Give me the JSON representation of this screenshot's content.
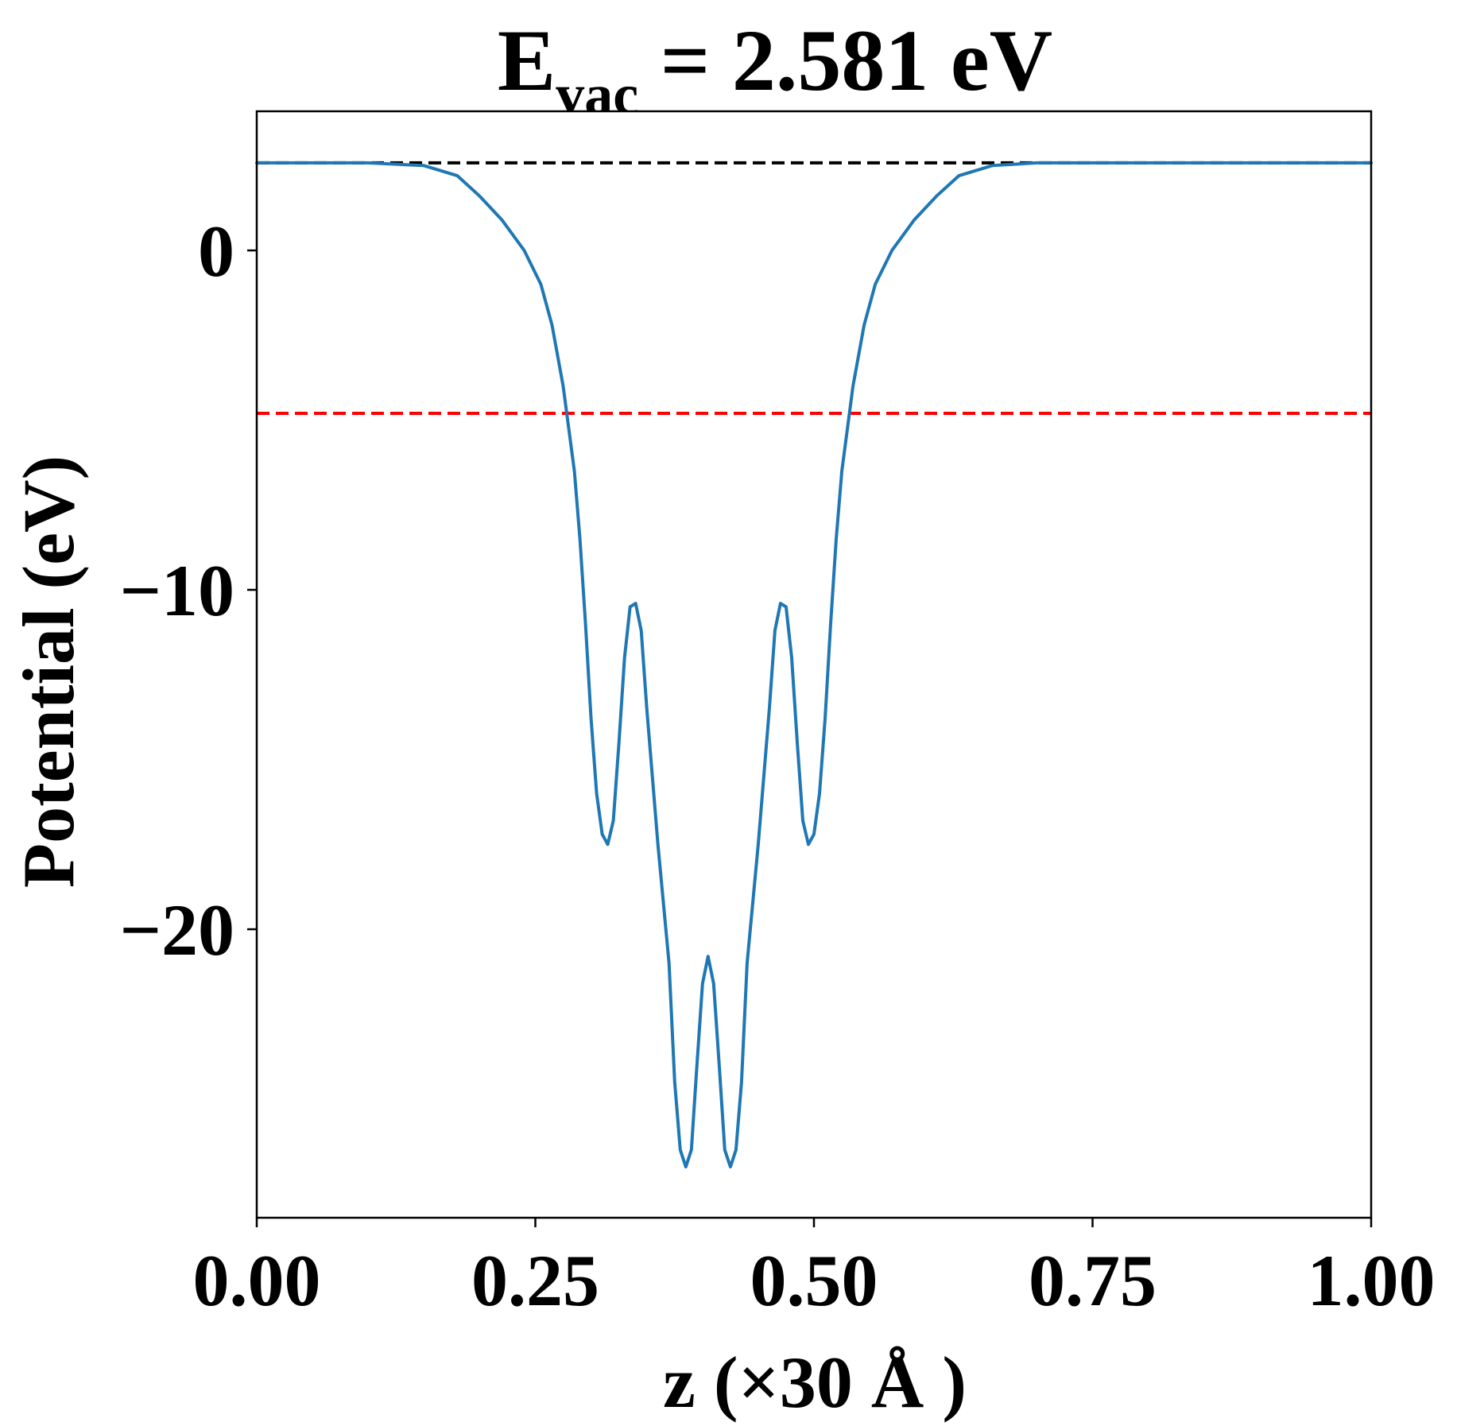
{
  "chart_data": {
    "type": "line",
    "title": {
      "main": "E",
      "subscript": "vac",
      "rest": " = 2.581 eV"
    },
    "xlabel": "z (×30 Å )",
    "ylabel": "Potential (eV)",
    "xlim": [
      0,
      1
    ],
    "ylim": [
      -28.5,
      4.1
    ],
    "x_ticks": [
      0,
      0.25,
      0.5,
      0.75,
      1.0
    ],
    "x_tick_labels": [
      "0.00",
      "0.25",
      "0.50",
      "0.75",
      "1.00"
    ],
    "y_ticks": [
      0,
      -10,
      -20
    ],
    "y_tick_labels": [
      "0",
      "−10",
      "−20"
    ],
    "grid": false,
    "series": [
      {
        "color": "#1f77b4",
        "points": [
          [
            0.0,
            2.58
          ],
          [
            0.05,
            2.58
          ],
          [
            0.1,
            2.58
          ],
          [
            0.15,
            2.5
          ],
          [
            0.18,
            2.2
          ],
          [
            0.2,
            1.6
          ],
          [
            0.22,
            0.9
          ],
          [
            0.24,
            0.0
          ],
          [
            0.255,
            -1.0
          ],
          [
            0.265,
            -2.2
          ],
          [
            0.275,
            -4.0
          ],
          [
            0.285,
            -6.5
          ],
          [
            0.29,
            -8.5
          ],
          [
            0.295,
            -11.0
          ],
          [
            0.3,
            -13.8
          ],
          [
            0.305,
            -16.0
          ],
          [
            0.31,
            -17.2
          ],
          [
            0.315,
            -17.5
          ],
          [
            0.32,
            -16.8
          ],
          [
            0.325,
            -14.5
          ],
          [
            0.33,
            -12.0
          ],
          [
            0.335,
            -10.5
          ],
          [
            0.34,
            -10.4
          ],
          [
            0.345,
            -11.2
          ],
          [
            0.35,
            -13.5
          ],
          [
            0.36,
            -17.5
          ],
          [
            0.37,
            -21.0
          ],
          [
            0.375,
            -24.5
          ],
          [
            0.38,
            -26.5
          ],
          [
            0.385,
            -27.0
          ],
          [
            0.39,
            -26.5
          ],
          [
            0.395,
            -24.0
          ],
          [
            0.4,
            -21.6
          ],
          [
            0.405,
            -20.8
          ],
          [
            0.41,
            -21.6
          ],
          [
            0.415,
            -24.0
          ],
          [
            0.42,
            -26.5
          ],
          [
            0.425,
            -27.0
          ],
          [
            0.43,
            -26.5
          ],
          [
            0.435,
            -24.5
          ],
          [
            0.44,
            -21.0
          ],
          [
            0.45,
            -17.5
          ],
          [
            0.46,
            -13.5
          ],
          [
            0.465,
            -11.2
          ],
          [
            0.47,
            -10.4
          ],
          [
            0.475,
            -10.5
          ],
          [
            0.48,
            -12.0
          ],
          [
            0.485,
            -14.5
          ],
          [
            0.49,
            -16.8
          ],
          [
            0.495,
            -17.5
          ],
          [
            0.5,
            -17.2
          ],
          [
            0.505,
            -16.0
          ],
          [
            0.51,
            -13.8
          ],
          [
            0.515,
            -11.0
          ],
          [
            0.52,
            -8.5
          ],
          [
            0.525,
            -6.5
          ],
          [
            0.535,
            -4.0
          ],
          [
            0.545,
            -2.2
          ],
          [
            0.555,
            -1.0
          ],
          [
            0.57,
            0.0
          ],
          [
            0.59,
            0.9
          ],
          [
            0.61,
            1.6
          ],
          [
            0.63,
            2.2
          ],
          [
            0.66,
            2.5
          ],
          [
            0.7,
            2.58
          ],
          [
            0.8,
            2.58
          ],
          [
            0.9,
            2.58
          ],
          [
            1.0,
            2.58
          ]
        ]
      }
    ],
    "reference_lines": [
      {
        "y": 2.581,
        "color": "#000000",
        "style": "dashed"
      },
      {
        "y": -4.8,
        "color": "#ff0000",
        "style": "dashed"
      }
    ]
  }
}
